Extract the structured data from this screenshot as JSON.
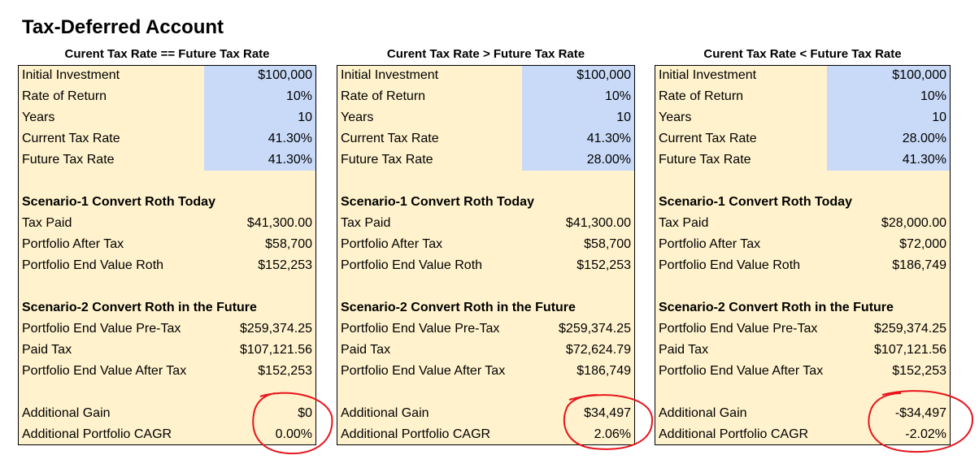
{
  "title": "Tax-Deferred Account",
  "panels": [
    {
      "header": "Curent Tax Rate == Future Tax Rate",
      "inputs": [
        {
          "label": "Initial Investment",
          "value": "$100,000"
        },
        {
          "label": "Rate of Return",
          "value": "10%"
        },
        {
          "label": "Years",
          "value": "10"
        },
        {
          "label": "Current Tax Rate",
          "value": "41.30%"
        },
        {
          "label": "Future Tax Rate",
          "value": "41.30%"
        }
      ],
      "scenario_1": {
        "title": "Scenario-1 Convert Roth Today",
        "rows": [
          {
            "label": "Tax Paid",
            "value": "$41,300.00"
          },
          {
            "label": "Portfolio After Tax",
            "value": "$58,700"
          },
          {
            "label": "Portfolio End Value Roth",
            "value": "$152,253"
          }
        ]
      },
      "scenario_2": {
        "title": "Scenario-2 Convert Roth in the Future",
        "rows": [
          {
            "label": "Portfolio End Value Pre-Tax",
            "value": "$259,374.25"
          },
          {
            "label": "Paid Tax",
            "value": "$107,121.56"
          },
          {
            "label": "Portfolio End Value After Tax",
            "value": "$152,253"
          }
        ]
      },
      "results": [
        {
          "label": "Additional Gain",
          "value": "$0"
        },
        {
          "label": "Additional Portfolio CAGR",
          "value": "0.00%"
        }
      ]
    },
    {
      "header": "Curent Tax Rate > Future Tax Rate",
      "inputs": [
        {
          "label": "Initial Investment",
          "value": "$100,000"
        },
        {
          "label": "Rate of Return",
          "value": "10%"
        },
        {
          "label": "Years",
          "value": "10"
        },
        {
          "label": "Current Tax Rate",
          "value": "41.30%"
        },
        {
          "label": "Future Tax Rate",
          "value": "28.00%"
        }
      ],
      "scenario_1": {
        "title": "Scenario-1 Convert Roth Today",
        "rows": [
          {
            "label": "Tax Paid",
            "value": "$41,300.00"
          },
          {
            "label": "Portfolio After Tax",
            "value": "$58,700"
          },
          {
            "label": "Portfolio End Value Roth",
            "value": "$152,253"
          }
        ]
      },
      "scenario_2": {
        "title": "Scenario-2 Convert Roth in the Future",
        "rows": [
          {
            "label": "Portfolio End Value Pre-Tax",
            "value": "$259,374.25"
          },
          {
            "label": "Paid Tax",
            "value": "$72,624.79"
          },
          {
            "label": "Portfolio End Value After Tax",
            "value": "$186,749"
          }
        ]
      },
      "results": [
        {
          "label": "Additional Gain",
          "value": "$34,497"
        },
        {
          "label": "Additional Portfolio CAGR",
          "value": "2.06%"
        }
      ]
    },
    {
      "header": "Curent Tax Rate < Future Tax Rate",
      "inputs": [
        {
          "label": "Initial Investment",
          "value": "$100,000"
        },
        {
          "label": "Rate of Return",
          "value": "10%"
        },
        {
          "label": "Years",
          "value": "10"
        },
        {
          "label": "Current Tax Rate",
          "value": "28.00%"
        },
        {
          "label": "Future Tax Rate",
          "value": "41.30%"
        }
      ],
      "scenario_1": {
        "title": "Scenario-1 Convert Roth Today",
        "rows": [
          {
            "label": "Tax Paid",
            "value": "$28,000.00"
          },
          {
            "label": "Portfolio After Tax",
            "value": "$72,000"
          },
          {
            "label": "Portfolio End Value Roth",
            "value": "$186,749"
          }
        ]
      },
      "scenario_2": {
        "title": "Scenario-2 Convert Roth in the Future",
        "rows": [
          {
            "label": "Portfolio End Value Pre-Tax",
            "value": "$259,374.25"
          },
          {
            "label": "Paid Tax",
            "value": "$107,121.56"
          },
          {
            "label": "Portfolio End Value After Tax",
            "value": "$152,253"
          }
        ]
      },
      "results": [
        {
          "label": "Additional Gain",
          "value": "-$34,497"
        },
        {
          "label": "Additional Portfolio CAGR",
          "value": "-2.02%"
        }
      ]
    }
  ]
}
